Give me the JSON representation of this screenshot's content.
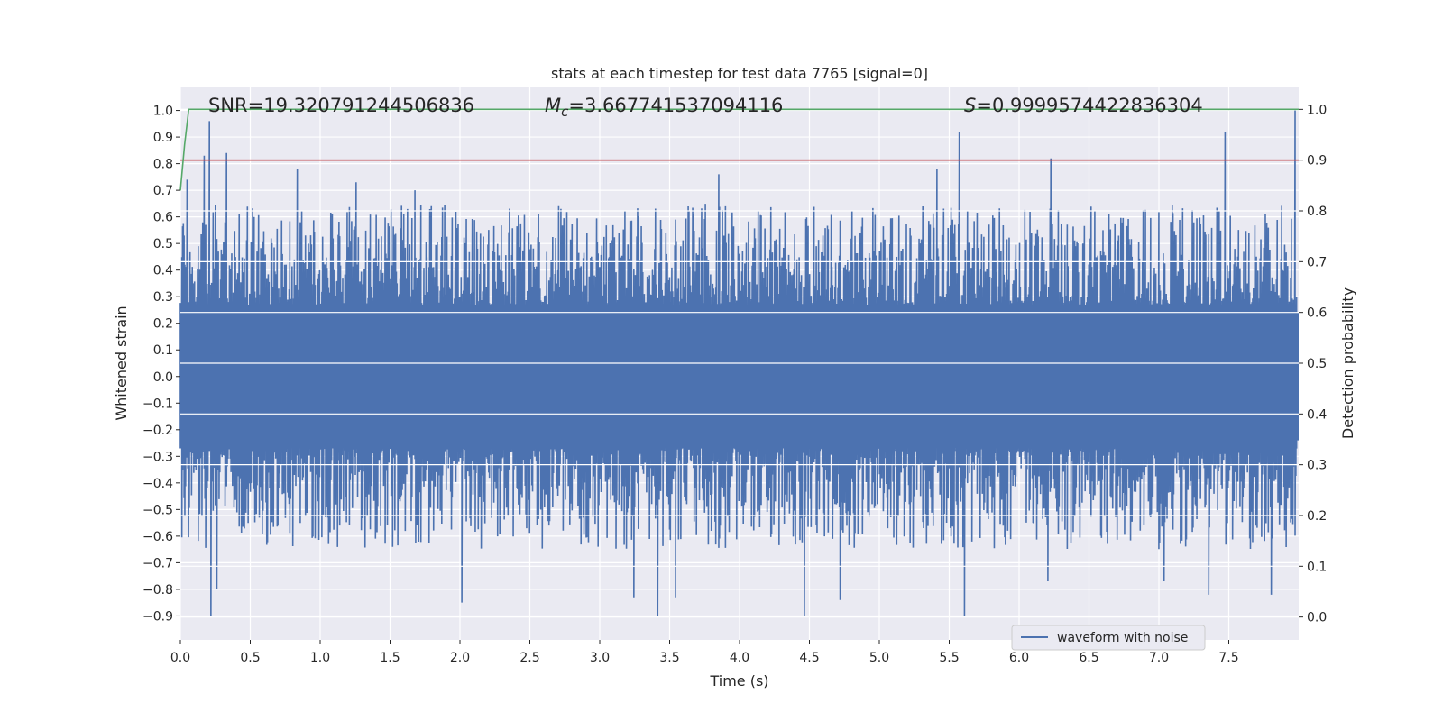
{
  "chart_data": {
    "type": "line",
    "title": "stats at each timestep for test data 7765 [signal=0]",
    "xlabel": "Time (s)",
    "ylabel": "Whitened strain",
    "ylabel_right": "Detection probability",
    "xlim": [
      0.0,
      8.0
    ],
    "ylim": [
      -0.99,
      1.09
    ],
    "ylim_right": [
      -0.045,
      1.045
    ],
    "x_ticks": [
      "0.0",
      "0.5",
      "1.0",
      "1.5",
      "2.0",
      "2.5",
      "3.0",
      "3.5",
      "4.0",
      "4.5",
      "5.0",
      "5.5",
      "6.0",
      "6.5",
      "7.0",
      "7.5"
    ],
    "x_tick_values": [
      0.0,
      0.5,
      1.0,
      1.5,
      2.0,
      2.5,
      3.0,
      3.5,
      4.0,
      4.5,
      5.0,
      5.5,
      6.0,
      6.5,
      7.0,
      7.5
    ],
    "y_ticks": [
      "1.0",
      "0.9",
      "0.8",
      "0.7",
      "0.6",
      "0.5",
      "0.4",
      "0.3",
      "0.2",
      "0.1",
      "0.0",
      "−0.1",
      "−0.2",
      "−0.3",
      "−0.4",
      "−0.5",
      "−0.6",
      "−0.7",
      "−0.8",
      "−0.9"
    ],
    "y_tick_values": [
      1.0,
      0.9,
      0.8,
      0.7,
      0.6,
      0.5,
      0.4,
      0.3,
      0.2,
      0.1,
      0.0,
      -0.1,
      -0.2,
      -0.3,
      -0.4,
      -0.5,
      -0.6,
      -0.7,
      -0.8,
      -0.9
    ],
    "y_ticks_right": [
      "1.0",
      "0.9",
      "0.8",
      "0.7",
      "0.6",
      "0.5",
      "0.4",
      "0.3",
      "0.2",
      "0.1",
      "0.0"
    ],
    "y_tick_values_right": [
      1.0,
      0.9,
      0.8,
      0.7,
      0.6,
      0.5,
      0.4,
      0.3,
      0.2,
      0.1,
      0.0
    ],
    "annotations": {
      "snr": "SNR=19.320791244506836",
      "mc_symbol": "M",
      "mc_sub": "c",
      "mc_value": "=3.667741537094116",
      "s_symbol": "S",
      "s_value": "=0.9999574422836304"
    },
    "legend": {
      "entries": [
        "waveform with noise"
      ],
      "location": "lower right"
    },
    "series": [
      {
        "name": "waveform with noise",
        "color": "#4c72b0",
        "axis": "left",
        "description": "dense whitened strain noise, roughly within ±0.6 with spikes",
        "upper_peaks": [
          [
            0.05,
            0.74
          ],
          [
            0.17,
            0.83
          ],
          [
            0.21,
            0.96
          ],
          [
            0.33,
            0.84
          ],
          [
            0.84,
            0.78
          ],
          [
            1.26,
            0.73
          ],
          [
            1.68,
            0.7
          ],
          [
            3.86,
            0.76
          ],
          [
            5.42,
            0.78
          ],
          [
            5.58,
            0.92
          ],
          [
            6.24,
            0.82
          ],
          [
            7.49,
            0.92
          ],
          [
            7.99,
            1.0
          ]
        ],
        "lower_peaks": [
          [
            0.22,
            -0.9
          ],
          [
            0.26,
            -0.8
          ],
          [
            2.02,
            -0.85
          ],
          [
            3.25,
            -0.83
          ],
          [
            3.42,
            -0.9
          ],
          [
            3.55,
            -0.83
          ],
          [
            4.47,
            -0.9
          ],
          [
            4.73,
            -0.84
          ],
          [
            5.62,
            -0.9
          ],
          [
            6.22,
            -0.77
          ],
          [
            7.05,
            -0.77
          ],
          [
            7.37,
            -0.82
          ],
          [
            7.82,
            -0.82
          ]
        ]
      },
      {
        "name": "detection probability",
        "color": "#55a868",
        "axis": "right",
        "points": [
          [
            0.0,
            0.84
          ],
          [
            0.03,
            0.93
          ],
          [
            0.06,
            1.0
          ],
          [
            8.0,
            1.0
          ]
        ]
      },
      {
        "name": "threshold",
        "color": "#c44e52",
        "axis": "right",
        "points": [
          [
            0.0,
            0.9
          ],
          [
            8.0,
            0.9
          ]
        ]
      }
    ],
    "colors": {
      "plot_background": "#eaeaf2",
      "grid": "#ffffff",
      "text": "#262626"
    }
  }
}
